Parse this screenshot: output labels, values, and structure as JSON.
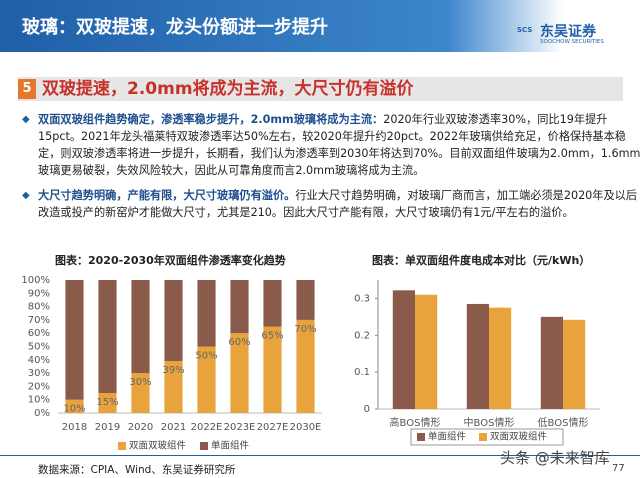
{
  "header": {
    "title": "玻璃：双玻提速，龙头份额进一步提升",
    "logo_cn": "东吴证券",
    "logo_en": "SOOCHOW SECURITIES",
    "logo_mark": "SCS"
  },
  "section": {
    "number": "5",
    "title": "双玻提速，2.0mm将成为主流，大尺寸仍有溢价"
  },
  "bullets": [
    {
      "bold": "双面双玻组件趋势确定，渗透率稳步提升，2.0mm玻璃将成为主流：",
      "text": "2020年行业双玻渗透率30%，同比19年提升15pct。2021年龙头福莱特双玻渗透率达50%左右，较2020年提升约20pct。2022年玻璃供给充足，价格保持基本稳定，则双玻渗透率将进一步提升，长期看，我们认为渗透率到2030年将达到70%。目前双面组件玻璃为2.0mm，1.6mm玻璃更易破裂，失效风险较大，因此从可靠角度而言2.0mm玻璃将成为主流。"
    },
    {
      "bold": "大尺寸趋势明确，产能有限，大尺寸玻璃仍有溢价。",
      "text": "行业大尺寸趋势明确，对玻璃厂商而言，加工端必须是2020年及以后改造或投产的新窑炉才能做大尺寸，尤其是210。因此大尺寸产能有限，大尺寸玻璃仍有1元/平左右的溢价。"
    }
  ],
  "chart_data": [
    {
      "type": "bar",
      "stacked": true,
      "title": "图表：2020-2030年双面组件渗透率变化趋势",
      "categories": [
        "2018",
        "2019",
        "2020",
        "2021",
        "2022E",
        "2023E",
        "2027E",
        "2030E"
      ],
      "series": [
        {
          "name": "双面双玻组件",
          "color": "#E8A33C",
          "values": [
            10,
            15,
            30,
            39,
            50,
            60,
            65,
            70
          ],
          "value_labels": [
            "10%",
            "15%",
            "30%",
            "39%",
            "50%",
            "60%",
            "65%",
            "70%"
          ]
        },
        {
          "name": "单面组件",
          "color": "#8A5A4B",
          "values": [
            90,
            85,
            70,
            61,
            50,
            40,
            35,
            30
          ]
        }
      ],
      "ylim": [
        0,
        100
      ],
      "yticks": [
        {
          "value": 0,
          "label": "0%"
        },
        {
          "value": 10,
          "label": "10%"
        },
        {
          "value": 20,
          "label": "20%"
        },
        {
          "value": 30,
          "label": "30%"
        },
        {
          "value": 40,
          "label": "40%"
        },
        {
          "value": 50,
          "label": "50%"
        },
        {
          "value": 60,
          "label": "60%"
        },
        {
          "value": 70,
          "label": "70%"
        },
        {
          "value": 80,
          "label": "80%"
        },
        {
          "value": 90,
          "label": "90%"
        },
        {
          "value": 100,
          "label": "100%"
        }
      ]
    },
    {
      "type": "bar",
      "stacked": false,
      "title": "图表：单双面组件度电成本对比（元/kWh）",
      "categories": [
        "高BOS情形",
        "中BOS情形",
        "低BOS情形"
      ],
      "series": [
        {
          "name": "单面组件",
          "color": "#8A5A4B",
          "values": [
            0.322,
            0.285,
            0.25
          ]
        },
        {
          "name": "双面双玻组件",
          "color": "#E8A33C",
          "values": [
            0.31,
            0.275,
            0.242
          ]
        }
      ],
      "ylim": [
        0,
        0.35
      ],
      "yticks": [
        0,
        0.1,
        0.2,
        0.3
      ]
    }
  ],
  "footer": {
    "source": "数据来源：CPIA、Wind、东吴证券研究所",
    "page": "77",
    "watermark": "头条 @未来智库"
  }
}
